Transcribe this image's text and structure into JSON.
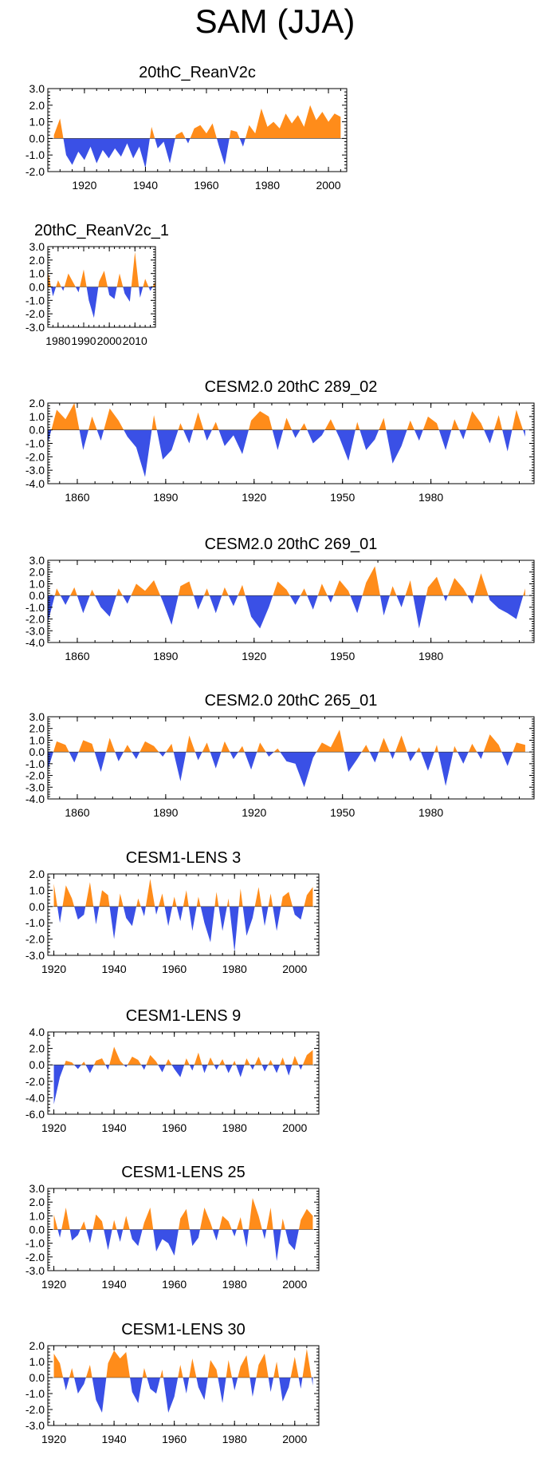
{
  "page_title": "SAM (JJA)",
  "colors": {
    "positive": "#ff8c1a",
    "negative": "#3a50e6",
    "axis": "#000000"
  },
  "chart_data": [
    {
      "type": "area",
      "title": "20thC_ReanV2c",
      "xlim": [
        1908,
        2006
      ],
      "ylim": [
        -2.0,
        3.0
      ],
      "yticks": [
        "3.0",
        "2.0",
        "1.0",
        "0.0",
        "-1.0",
        "-2.0"
      ],
      "xticks": [
        "1920",
        "1940",
        "1960",
        "1980",
        "2000"
      ],
      "x": [
        1910,
        1912,
        1914,
        1916,
        1918,
        1920,
        1922,
        1924,
        1926,
        1928,
        1930,
        1932,
        1934,
        1936,
        1938,
        1940,
        1942,
        1944,
        1946,
        1948,
        1950,
        1952,
        1954,
        1956,
        1958,
        1960,
        1962,
        1964,
        1966,
        1968,
        1970,
        1972,
        1974,
        1976,
        1978,
        1980,
        1982,
        1984,
        1986,
        1988,
        1990,
        1992,
        1994,
        1996,
        1998,
        2000,
        2002,
        2004
      ],
      "values": [
        0.2,
        1.2,
        -1.0,
        -1.6,
        -0.8,
        -1.3,
        -0.5,
        -1.5,
        -0.7,
        -1.2,
        -0.6,
        -1.1,
        -0.3,
        -1.2,
        -0.5,
        -1.8,
        0.7,
        -0.6,
        -0.2,
        -1.5,
        0.2,
        0.4,
        -0.3,
        0.6,
        0.8,
        0.3,
        0.9,
        -0.4,
        -1.6,
        0.5,
        0.4,
        -0.5,
        0.8,
        0.3,
        1.8,
        0.7,
        1.0,
        0.6,
        1.5,
        0.9,
        1.4,
        0.7,
        2.0,
        1.1,
        1.6,
        1.0,
        1.5,
        1.3
      ]
    },
    {
      "type": "area",
      "title": "20thC_ReanV2c_1",
      "xlim": [
        1976,
        2018
      ],
      "ylim": [
        -3.0,
        3.0
      ],
      "yticks": [
        "3.0",
        "2.0",
        "1.0",
        "0.0",
        "-1.0",
        "-2.0",
        "-3.0"
      ],
      "xticks": [
        "1980",
        "1990",
        "2000",
        "2010"
      ],
      "x": [
        1976,
        1978,
        1980,
        1982,
        1984,
        1986,
        1988,
        1990,
        1992,
        1994,
        1996,
        1998,
        2000,
        2002,
        2004,
        2006,
        2008,
        2010,
        2012,
        2014,
        2016,
        2018
      ],
      "values": [
        1.2,
        -0.7,
        0.5,
        -0.3,
        1.0,
        0.3,
        -0.4,
        1.3,
        -1.0,
        -2.3,
        0.4,
        1.2,
        -0.6,
        -0.9,
        1.0,
        -0.5,
        -1.1,
        2.6,
        -0.8,
        0.6,
        -0.3,
        0.4
      ]
    },
    {
      "type": "area",
      "title": "CESM2.0 20thC 289_02",
      "xlim": [
        1850,
        2015
      ],
      "ylim": [
        -4.0,
        2.0
      ],
      "yticks": [
        "2.0",
        "1.0",
        "0.0",
        "-1.0",
        "-2.0",
        "-3.0",
        "-4.0"
      ],
      "xticks": [
        "1860",
        "1890",
        "1920",
        "1950",
        "1980"
      ],
      "x": [
        1850,
        1853,
        1856,
        1859,
        1862,
        1865,
        1868,
        1871,
        1874,
        1877,
        1880,
        1883,
        1886,
        1889,
        1892,
        1895,
        1898,
        1901,
        1904,
        1907,
        1910,
        1913,
        1916,
        1919,
        1922,
        1925,
        1928,
        1931,
        1934,
        1937,
        1940,
        1943,
        1946,
        1949,
        1952,
        1955,
        1958,
        1961,
        1964,
        1967,
        1970,
        1973,
        1976,
        1979,
        1982,
        1985,
        1988,
        1991,
        1994,
        1997,
        2000,
        2003,
        2006,
        2009,
        2012
      ],
      "values": [
        -1.0,
        1.5,
        0.8,
        2.0,
        -1.5,
        1.0,
        -0.8,
        1.6,
        0.7,
        -0.5,
        -1.3,
        -3.5,
        1.1,
        -2.2,
        -1.5,
        0.5,
        -1.0,
        1.3,
        -0.8,
        0.6,
        -1.2,
        -0.4,
        -1.8,
        0.7,
        1.4,
        1.0,
        -1.5,
        0.9,
        -0.6,
        0.5,
        -1.0,
        -0.4,
        0.8,
        -0.6,
        -2.3,
        0.6,
        -1.5,
        -0.7,
        0.9,
        -2.5,
        -1.2,
        0.7,
        -0.8,
        1.0,
        0.5,
        -1.5,
        0.8,
        -0.7,
        1.4,
        0.5,
        -1.0,
        1.1,
        -1.6,
        1.5,
        -0.5
      ]
    },
    {
      "type": "area",
      "title": "CESM2.0 20thC 269_01",
      "xlim": [
        1850,
        2015
      ],
      "ylim": [
        -4.0,
        3.0
      ],
      "yticks": [
        "3.0",
        "2.0",
        "1.0",
        "0.0",
        "-1.0",
        "-2.0",
        "-3.0",
        "-4.0"
      ],
      "xticks": [
        "1860",
        "1890",
        "1920",
        "1950",
        "1980"
      ],
      "x": [
        1850,
        1853,
        1856,
        1859,
        1862,
        1865,
        1868,
        1871,
        1874,
        1877,
        1880,
        1883,
        1886,
        1889,
        1892,
        1895,
        1898,
        1901,
        1904,
        1907,
        1910,
        1913,
        1916,
        1919,
        1922,
        1925,
        1928,
        1931,
        1934,
        1937,
        1940,
        1943,
        1946,
        1949,
        1952,
        1955,
        1958,
        1961,
        1964,
        1967,
        1970,
        1973,
        1976,
        1979,
        1982,
        1985,
        1988,
        1991,
        1994,
        1997,
        2000,
        2003,
        2006,
        2009,
        2012
      ],
      "values": [
        -2.3,
        0.6,
        -0.8,
        0.7,
        -1.5,
        0.5,
        -1.0,
        -1.8,
        0.6,
        -0.7,
        1.0,
        0.4,
        1.3,
        -0.5,
        -2.5,
        0.8,
        1.2,
        -1.2,
        0.6,
        -1.5,
        0.7,
        -0.9,
        0.9,
        -1.8,
        -2.8,
        -1.0,
        1.2,
        0.5,
        -0.8,
        0.6,
        -1.2,
        1.0,
        -0.6,
        1.3,
        0.4,
        -1.5,
        1.1,
        2.5,
        -1.7,
        0.8,
        -1.0,
        1.3,
        -2.8,
        0.7,
        1.6,
        -0.5,
        1.5,
        0.6,
        -0.7,
        1.9,
        -0.4,
        -1.1,
        -1.5,
        -2.0,
        0.6
      ]
    },
    {
      "type": "area",
      "title": "CESM2.0 20thC 265_01",
      "xlim": [
        1850,
        2015
      ],
      "ylim": [
        -4.0,
        3.0
      ],
      "yticks": [
        "3.0",
        "2.0",
        "1.0",
        "0.0",
        "-1.0",
        "-2.0",
        "-3.0",
        "-4.0"
      ],
      "xticks": [
        "1860",
        "1890",
        "1920",
        "1950",
        "1980"
      ],
      "x": [
        1850,
        1853,
        1856,
        1859,
        1862,
        1865,
        1868,
        1871,
        1874,
        1877,
        1880,
        1883,
        1886,
        1889,
        1892,
        1895,
        1898,
        1901,
        1904,
        1907,
        1910,
        1913,
        1916,
        1919,
        1922,
        1925,
        1928,
        1931,
        1934,
        1937,
        1940,
        1943,
        1946,
        1949,
        1952,
        1955,
        1958,
        1961,
        1964,
        1967,
        1970,
        1973,
        1976,
        1979,
        1982,
        1985,
        1988,
        1991,
        1994,
        1997,
        2000,
        2003,
        2006,
        2009,
        2012
      ],
      "values": [
        -1.5,
        0.9,
        0.6,
        -0.9,
        1.0,
        0.7,
        -1.7,
        1.2,
        -0.8,
        0.6,
        -0.6,
        0.9,
        0.5,
        -0.4,
        0.7,
        -2.5,
        1.4,
        -0.7,
        0.8,
        -1.4,
        0.9,
        -0.6,
        0.5,
        -1.5,
        0.8,
        -0.4,
        0.3,
        -0.8,
        -1.0,
        -3.0,
        -0.5,
        0.8,
        0.4,
        1.9,
        -1.7,
        -0.6,
        0.6,
        -0.9,
        1.2,
        -0.6,
        1.4,
        -0.8,
        0.4,
        -1.6,
        0.6,
        -2.9,
        0.5,
        -1.0,
        0.7,
        -0.6,
        1.5,
        0.6,
        -1.2,
        0.8,
        0.6
      ]
    },
    {
      "type": "area",
      "title": "CESM1-LENS 3",
      "xlim": [
        1918,
        2008
      ],
      "ylim": [
        -3.0,
        2.0
      ],
      "yticks": [
        "2.0",
        "1.0",
        "0.0",
        "-1.0",
        "-2.0",
        "-3.0"
      ],
      "xticks": [
        "1920",
        "1940",
        "1960",
        "1980",
        "2000"
      ],
      "x": [
        1920,
        1922,
        1924,
        1926,
        1928,
        1930,
        1932,
        1934,
        1936,
        1938,
        1940,
        1942,
        1944,
        1946,
        1948,
        1950,
        1952,
        1954,
        1956,
        1958,
        1960,
        1962,
        1964,
        1966,
        1968,
        1970,
        1972,
        1974,
        1976,
        1978,
        1980,
        1982,
        1984,
        1986,
        1988,
        1990,
        1992,
        1994,
        1996,
        1998,
        2000,
        2002,
        2004,
        2006
      ],
      "values": [
        1.4,
        -1.0,
        1.3,
        0.5,
        -0.8,
        -0.5,
        1.5,
        -1.1,
        1.0,
        0.7,
        -2.0,
        0.8,
        -0.7,
        -1.2,
        0.5,
        -0.6,
        1.7,
        -0.5,
        0.8,
        -1.2,
        0.6,
        -0.9,
        1.0,
        -1.5,
        0.6,
        -1.0,
        -2.2,
        0.9,
        -1.5,
        0.5,
        -2.8,
        1.1,
        -1.8,
        -0.7,
        1.2,
        -1.2,
        0.8,
        -1.5,
        0.6,
        0.9,
        -0.5,
        -0.8,
        0.7,
        1.2
      ]
    },
    {
      "type": "area",
      "title": "CESM1-LENS 9",
      "xlim": [
        1918,
        2008
      ],
      "ylim": [
        -6.0,
        4.0
      ],
      "yticks": [
        "4.0",
        "2.0",
        "0.0",
        "-2.0",
        "-4.0",
        "-6.0"
      ],
      "xticks": [
        "1920",
        "1940",
        "1960",
        "1980",
        "2000"
      ],
      "x": [
        1920,
        1922,
        1924,
        1926,
        1928,
        1930,
        1932,
        1934,
        1936,
        1938,
        1940,
        1942,
        1944,
        1946,
        1948,
        1950,
        1952,
        1954,
        1956,
        1958,
        1960,
        1962,
        1964,
        1966,
        1968,
        1970,
        1972,
        1974,
        1976,
        1978,
        1980,
        1982,
        1984,
        1986,
        1988,
        1990,
        1992,
        1994,
        1996,
        1998,
        2000,
        2002,
        2004,
        2006
      ],
      "values": [
        -4.8,
        -1.5,
        0.5,
        0.3,
        -0.5,
        0.4,
        -1.0,
        0.5,
        0.8,
        -0.6,
        2.2,
        0.5,
        -0.3,
        1.0,
        0.6,
        -0.6,
        1.2,
        0.4,
        -0.9,
        0.7,
        -0.5,
        -1.5,
        0.8,
        -0.7,
        1.5,
        -1.0,
        0.9,
        -0.6,
        0.7,
        -1.0,
        0.5,
        -1.5,
        0.8,
        -0.6,
        1.0,
        -0.8,
        0.6,
        -1.0,
        0.9,
        -1.3,
        1.1,
        -0.6,
        1.2,
        1.8
      ]
    },
    {
      "type": "area",
      "title": "CESM1-LENS 25",
      "xlim": [
        1918,
        2008
      ],
      "ylim": [
        -3.0,
        3.0
      ],
      "yticks": [
        "3.0",
        "2.0",
        "1.0",
        "0.0",
        "-1.0",
        "-2.0",
        "-3.0"
      ],
      "xticks": [
        "1920",
        "1940",
        "1960",
        "1980",
        "2000"
      ],
      "x": [
        1920,
        1922,
        1924,
        1926,
        1928,
        1930,
        1932,
        1934,
        1936,
        1938,
        1940,
        1942,
        1944,
        1946,
        1948,
        1950,
        1952,
        1954,
        1956,
        1958,
        1960,
        1962,
        1964,
        1966,
        1968,
        1970,
        1972,
        1974,
        1976,
        1978,
        1980,
        1982,
        1984,
        1986,
        1988,
        1990,
        1992,
        1994,
        1996,
        1998,
        2000,
        2002,
        2004,
        2006
      ],
      "values": [
        1.1,
        -0.6,
        1.6,
        -0.8,
        -0.4,
        0.6,
        -1.0,
        1.1,
        0.6,
        -1.5,
        0.7,
        -0.9,
        1.0,
        -0.7,
        -1.2,
        0.5,
        1.6,
        -1.6,
        -0.7,
        -1.0,
        -1.9,
        0.8,
        1.5,
        -1.2,
        -0.6,
        1.6,
        0.5,
        -0.8,
        1.0,
        0.6,
        -0.5,
        0.9,
        -1.3,
        2.3,
        1.0,
        -0.7,
        1.6,
        -2.3,
        0.8,
        -1.0,
        -1.5,
        0.7,
        1.5,
        1.0
      ]
    },
    {
      "type": "area",
      "title": "CESM1-LENS 30",
      "xlim": [
        1918,
        2008
      ],
      "ylim": [
        -3.0,
        2.0
      ],
      "yticks": [
        "2.0",
        "1.0",
        "0.0",
        "-1.0",
        "-2.0",
        "-3.0"
      ],
      "xticks": [
        "1920",
        "1940",
        "1960",
        "1980",
        "2000"
      ],
      "x": [
        1920,
        1922,
        1924,
        1926,
        1928,
        1930,
        1932,
        1934,
        1936,
        1938,
        1940,
        1942,
        1944,
        1946,
        1948,
        1950,
        1952,
        1954,
        1956,
        1958,
        1960,
        1962,
        1964,
        1966,
        1968,
        1970,
        1972,
        1974,
        1976,
        1978,
        1980,
        1982,
        1984,
        1986,
        1988,
        1990,
        1992,
        1994,
        1996,
        1998,
        2000,
        2002,
        2004,
        2006
      ],
      "values": [
        1.5,
        0.9,
        -0.8,
        0.6,
        -1.0,
        -0.4,
        0.8,
        -1.4,
        -2.2,
        0.9,
        1.7,
        1.2,
        1.6,
        -0.9,
        -1.6,
        0.6,
        -0.7,
        -1.0,
        0.5,
        -2.2,
        -1.2,
        0.8,
        -1.0,
        1.2,
        -0.6,
        -1.4,
        1.1,
        0.5,
        -1.6,
        1.1,
        -0.8,
        0.7,
        1.4,
        -1.2,
        0.8,
        1.5,
        -0.9,
        1.0,
        -1.5,
        -0.6,
        1.3,
        -0.7,
        1.8,
        -0.5
      ]
    }
  ]
}
